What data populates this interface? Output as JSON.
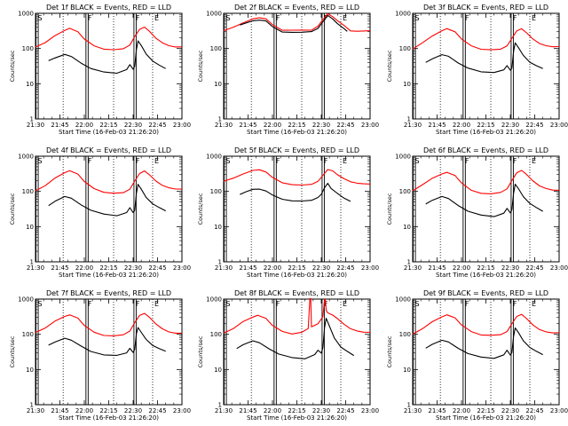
{
  "chart_data": {
    "type": "line",
    "layout": "3x3 grid of panels",
    "xlabel": "Start Time (16-Feb-03 21:26:20)",
    "ylabel": "Counts/sec",
    "x_ticks": [
      "21:30",
      "21:45",
      "22:00",
      "22:15",
      "22:30",
      "22:45",
      "23:00"
    ],
    "x_tick_minutes": [
      0,
      15,
      30,
      45,
      60,
      75,
      90
    ],
    "xlim_minutes": [
      0,
      90
    ],
    "y_scale": "log",
    "ylim": [
      1,
      1000
    ],
    "y_ticks": [
      "1",
      "10",
      "100",
      "1000"
    ],
    "grid": false,
    "legend": "none",
    "colors": {
      "events": "#000000",
      "lld": "#ff0000"
    },
    "marker_labels": {
      "S": "S",
      "F": "F",
      "E": "E"
    },
    "panels": [
      {
        "title": "Det 1f BLACK = Events, RED = LLD",
        "lld": {
          "x": [
            0,
            6,
            12,
            18,
            21,
            26,
            30,
            36,
            42,
            48,
            54,
            58,
            61,
            64,
            67,
            70,
            74,
            78,
            82,
            86,
            90
          ],
          "y": [
            110,
            150,
            240,
            340,
            390,
            310,
            190,
            120,
            95,
            90,
            95,
            120,
            210,
            340,
            400,
            310,
            200,
            150,
            125,
            115,
            115
          ]
        },
        "events": {
          "x": [
            8,
            12,
            18,
            22,
            28,
            34,
            42,
            50,
            56,
            58,
            60,
            61,
            62,
            63,
            65,
            68,
            72,
            76,
            80
          ],
          "y": [
            45,
            55,
            70,
            62,
            40,
            28,
            22,
            20,
            25,
            34,
            25,
            30,
            90,
            160,
            120,
            70,
            45,
            35,
            28
          ]
        }
      },
      {
        "title": "Det 2f BLACK = Events, RED = LLD",
        "lld": {
          "x": [
            0,
            6,
            12,
            18,
            22,
            26,
            30,
            36,
            42,
            48,
            54,
            58,
            61,
            64,
            67,
            70,
            74,
            78,
            82,
            86,
            90
          ],
          "y": [
            330,
            420,
            560,
            720,
            760,
            700,
            470,
            320,
            320,
            320,
            320,
            420,
            650,
            980,
            820,
            640,
            470,
            330,
            320,
            320,
            320
          ]
        },
        "events": {
          "x": [
            10,
            14,
            18,
            22,
            26,
            30,
            36,
            42,
            48,
            54,
            58,
            61,
            64,
            67,
            70,
            74,
            76
          ],
          "y": [
            480,
            560,
            640,
            660,
            620,
            420,
            290,
            280,
            280,
            290,
            360,
            560,
            860,
            700,
            520,
            380,
            320
          ]
        }
      },
      {
        "title": "Det 3f BLACK = Events, RED = LLD",
        "lld": {
          "x": [
            0,
            6,
            12,
            18,
            21,
            26,
            30,
            36,
            42,
            48,
            54,
            58,
            61,
            64,
            67,
            70,
            74,
            78,
            82,
            86,
            90
          ],
          "y": [
            100,
            150,
            230,
            320,
            360,
            290,
            180,
            115,
            92,
            90,
            95,
            120,
            200,
            330,
            380,
            290,
            190,
            140,
            120,
            110,
            110
          ]
        },
        "events": {
          "x": [
            8,
            12,
            18,
            22,
            28,
            34,
            42,
            50,
            56,
            58,
            60,
            61,
            62,
            63,
            65,
            68,
            72,
            76,
            80
          ],
          "y": [
            42,
            52,
            68,
            60,
            38,
            27,
            21,
            20,
            24,
            32,
            24,
            28,
            85,
            150,
            110,
            66,
            42,
            33,
            27
          ]
        }
      },
      {
        "title": "Det 4f BLACK = Events, RED = LLD",
        "lld": {
          "x": [
            0,
            6,
            12,
            18,
            21,
            26,
            30,
            36,
            42,
            48,
            54,
            58,
            61,
            64,
            67,
            70,
            74,
            78,
            82,
            86,
            90
          ],
          "y": [
            105,
            145,
            235,
            330,
            370,
            300,
            185,
            118,
            94,
            90,
            95,
            120,
            205,
            335,
            390,
            300,
            195,
            145,
            122,
            112,
            112
          ]
        },
        "events": {
          "x": [
            8,
            12,
            18,
            22,
            28,
            34,
            42,
            50,
            56,
            58,
            60,
            61,
            62,
            63,
            65,
            68,
            72,
            76,
            80
          ],
          "y": [
            40,
            52,
            70,
            62,
            40,
            28,
            22,
            20,
            25,
            35,
            26,
            30,
            92,
            165,
            118,
            68,
            44,
            34,
            27
          ]
        }
      },
      {
        "title": "Det 5f BLACK = Events, RED = LLD",
        "lld": {
          "x": [
            0,
            6,
            12,
            18,
            22,
            26,
            30,
            36,
            42,
            48,
            54,
            58,
            61,
            64,
            67,
            70,
            74,
            78,
            82,
            86,
            90
          ],
          "y": [
            190,
            230,
            300,
            380,
            400,
            350,
            250,
            180,
            160,
            158,
            165,
            200,
            290,
            420,
            380,
            290,
            220,
            180,
            165,
            160,
            160
          ]
        },
        "events": {
          "x": [
            10,
            14,
            18,
            22,
            26,
            30,
            36,
            42,
            48,
            54,
            58,
            60,
            62,
            64,
            66,
            70,
            74,
            78
          ],
          "y": [
            80,
            95,
            110,
            112,
            100,
            78,
            60,
            55,
            55,
            58,
            70,
            85,
            130,
            170,
            120,
            85,
            62,
            50
          ]
        }
      },
      {
        "title": "Det 6f BLACK = Events, RED = LLD",
        "lld": {
          "x": [
            0,
            6,
            12,
            18,
            21,
            26,
            30,
            36,
            42,
            48,
            54,
            58,
            61,
            64,
            67,
            70,
            74,
            78,
            82,
            86,
            90
          ],
          "y": [
            100,
            150,
            230,
            310,
            350,
            290,
            180,
            112,
            92,
            88,
            95,
            118,
            200,
            330,
            380,
            290,
            190,
            140,
            120,
            110,
            110
          ]
        },
        "events": {
          "x": [
            8,
            12,
            18,
            22,
            28,
            34,
            42,
            50,
            56,
            58,
            60,
            61,
            62,
            63,
            65,
            68,
            72,
            76,
            80
          ],
          "y": [
            42,
            54,
            70,
            62,
            40,
            28,
            22,
            20,
            25,
            34,
            25,
            30,
            88,
            155,
            115,
            68,
            44,
            34,
            27
          ]
        }
      },
      {
        "title": "Det 7f BLACK = Events, RED = LLD",
        "lld": {
          "x": [
            0,
            6,
            12,
            18,
            21,
            26,
            30,
            36,
            42,
            48,
            54,
            58,
            61,
            64,
            67,
            70,
            74,
            78,
            82,
            86,
            90
          ],
          "y": [
            110,
            150,
            240,
            330,
            370,
            300,
            185,
            118,
            94,
            90,
            95,
            120,
            205,
            330,
            380,
            300,
            195,
            145,
            120,
            112,
            112
          ]
        },
        "events": {
          "x": [
            8,
            12,
            18,
            22,
            28,
            34,
            42,
            50,
            56,
            58,
            60,
            61,
            62,
            63,
            65,
            68,
            72,
            76,
            80
          ],
          "y": [
            48,
            60,
            78,
            70,
            48,
            34,
            27,
            26,
            30,
            40,
            30,
            36,
            100,
            150,
            110,
            70,
            48,
            40,
            34
          ]
        }
      },
      {
        "title": "Det 8f BLACK = Events, RED = LLD",
        "lld": {
          "x": [
            0,
            6,
            12,
            18,
            21,
            26,
            30,
            36,
            42,
            48,
            52,
            53,
            53.5,
            54,
            58,
            61,
            62,
            62.5,
            63,
            64,
            67,
            70,
            74,
            78,
            82,
            86,
            90
          ],
          "y": [
            110,
            150,
            240,
            320,
            360,
            290,
            180,
            120,
            100,
            110,
            140,
            1000,
            1000,
            160,
            200,
            320,
            1000,
            1000,
            500,
            420,
            360,
            280,
            190,
            140,
            120,
            110,
            110
          ]
        },
        "events": {
          "x": [
            8,
            12,
            18,
            22,
            28,
            34,
            42,
            50,
            56,
            58,
            60,
            61,
            62,
            63,
            65,
            68,
            72,
            76,
            80
          ],
          "y": [
            40,
            52,
            68,
            60,
            40,
            28,
            22,
            20,
            26,
            34,
            28,
            40,
            150,
            280,
            170,
            80,
            45,
            34,
            26
          ]
        }
      },
      {
        "title": "Det 9f BLACK = Events, RED = LLD",
        "lld": {
          "x": [
            0,
            6,
            12,
            18,
            21,
            26,
            30,
            36,
            42,
            48,
            54,
            58,
            61,
            64,
            67,
            70,
            74,
            78,
            82,
            86,
            90
          ],
          "y": [
            105,
            150,
            235,
            320,
            360,
            290,
            180,
            115,
            92,
            90,
            95,
            118,
            200,
            330,
            380,
            290,
            190,
            140,
            120,
            110,
            110
          ]
        },
        "events": {
          "x": [
            8,
            12,
            18,
            22,
            28,
            34,
            42,
            50,
            56,
            58,
            60,
            61,
            62,
            63,
            65,
            68,
            72,
            76,
            80
          ],
          "y": [
            42,
            54,
            70,
            62,
            40,
            28,
            22,
            20,
            25,
            34,
            25,
            30,
            88,
            155,
            115,
            68,
            44,
            34,
            27
          ]
        }
      }
    ],
    "markers": [
      {
        "label": "S",
        "x": 0.3,
        "style": "double"
      },
      {
        "label": "F",
        "x": 31,
        "style": "double"
      },
      {
        "label": "F",
        "x": 60.5,
        "style": "double"
      },
      {
        "label": "E",
        "x": 72,
        "style": "dotted"
      }
    ],
    "dotted_lines_x": [
      17,
      48
    ]
  }
}
